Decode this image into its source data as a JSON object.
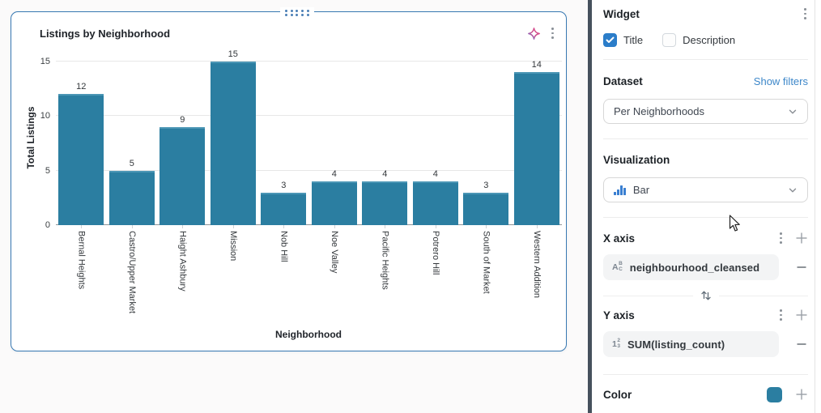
{
  "chart_card": {
    "title": "Listings by Neighborhood"
  },
  "chart_data": {
    "type": "bar",
    "title": "Listings by Neighborhood",
    "categories": [
      "Bernal Heights",
      "Castro/Upper Market",
      "Haight Ashbury",
      "Mission",
      "Nob Hill",
      "Noe Valley",
      "Pacific Heights",
      "Potrero Hill",
      "South of Market",
      "Western Addition"
    ],
    "values": [
      12,
      5,
      9,
      15,
      3,
      4,
      4,
      4,
      3,
      14
    ],
    "xlabel": "Neighborhood",
    "ylabel": "Total Listings",
    "ylim": [
      0,
      15
    ],
    "yticks": [
      0,
      5,
      10,
      15
    ],
    "grid": true,
    "data_labels": true,
    "legend": "none",
    "bar_color": "#2b7ea1"
  },
  "panel": {
    "widget": {
      "title": "Widget",
      "checkboxes": [
        {
          "label": "Title",
          "checked": true
        },
        {
          "label": "Description",
          "checked": false
        }
      ]
    },
    "dataset": {
      "label": "Dataset",
      "link": "Show filters",
      "selected": "Per Neighborhoods"
    },
    "visualization": {
      "label": "Visualization",
      "selected": "Bar"
    },
    "x_axis": {
      "label": "X axis",
      "field": "neighbourhood_cleansed",
      "type_icon": {
        "main": "A",
        "sup": "B",
        "sub": "C"
      }
    },
    "y_axis": {
      "label": "Y axis",
      "field": "SUM(listing_count)",
      "type_icon": {
        "main": "1",
        "sup": "2",
        "sub": "3"
      }
    },
    "color": {
      "label": "Color",
      "swatch": "#2b7ea1"
    }
  },
  "colors": {
    "bar": "#2b7ea1",
    "card_border": "#3879b2",
    "checkbox_accent": "#2b7dc9",
    "link": "#3d87c9",
    "side_divider": "#46515d"
  }
}
